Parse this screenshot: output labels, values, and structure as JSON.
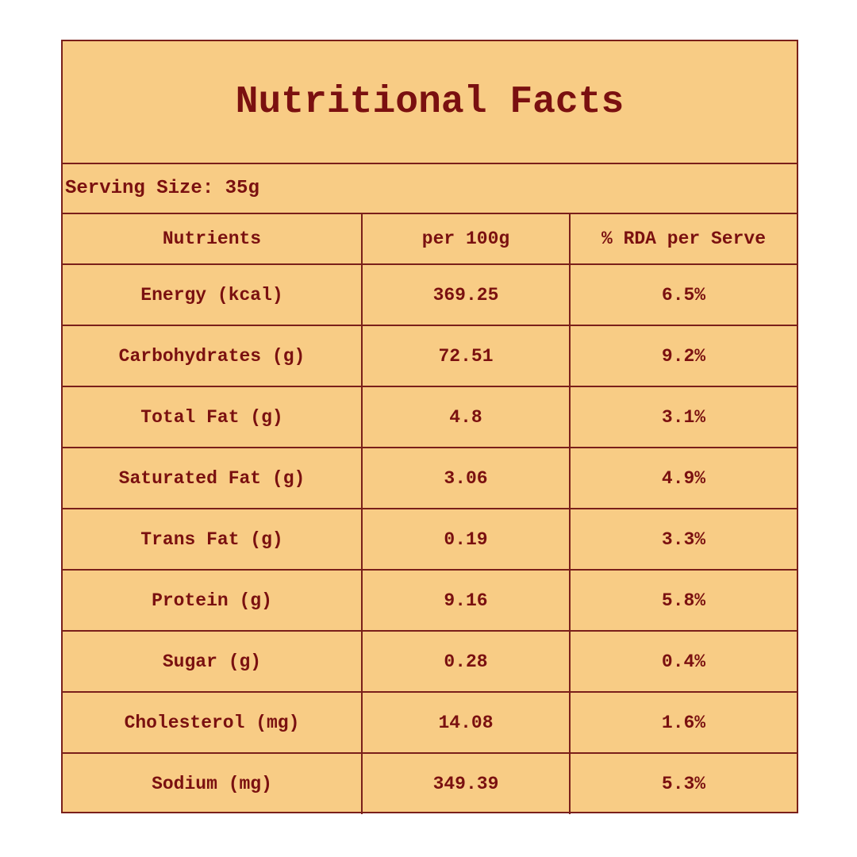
{
  "title": "Nutritional Facts",
  "serving_size": "Serving Size: 35g",
  "headers": {
    "nutrients": "Nutrients",
    "per100g": "per 100g",
    "rda": "% RDA per Serve"
  },
  "rows": [
    {
      "nutrient": "Energy (kcal)",
      "per100g": "369.25",
      "rda": "6.5%"
    },
    {
      "nutrient": "Carbohydrates (g)",
      "per100g": "72.51",
      "rda": "9.2%"
    },
    {
      "nutrient": "Total Fat (g)",
      "per100g": "4.8",
      "rda": "3.1%"
    },
    {
      "nutrient": "Saturated Fat (g)",
      "per100g": "3.06",
      "rda": "4.9%"
    },
    {
      "nutrient": "Trans Fat (g)",
      "per100g": "0.19",
      "rda": "3.3%"
    },
    {
      "nutrient": "Protein (g)",
      "per100g": "9.16",
      "rda": "5.8%"
    },
    {
      "nutrient": "Sugar (g)",
      "per100g": "0.28",
      "rda": "0.4%"
    },
    {
      "nutrient": "Cholesterol (mg)",
      "per100g": "14.08",
      "rda": "1.6%"
    },
    {
      "nutrient": "Sodium (mg)",
      "per100g": "349.39",
      "rda": "5.3%"
    }
  ],
  "colors": {
    "background": "#f8cc85",
    "text": "#7a1010",
    "border": "#7a1f1a"
  }
}
